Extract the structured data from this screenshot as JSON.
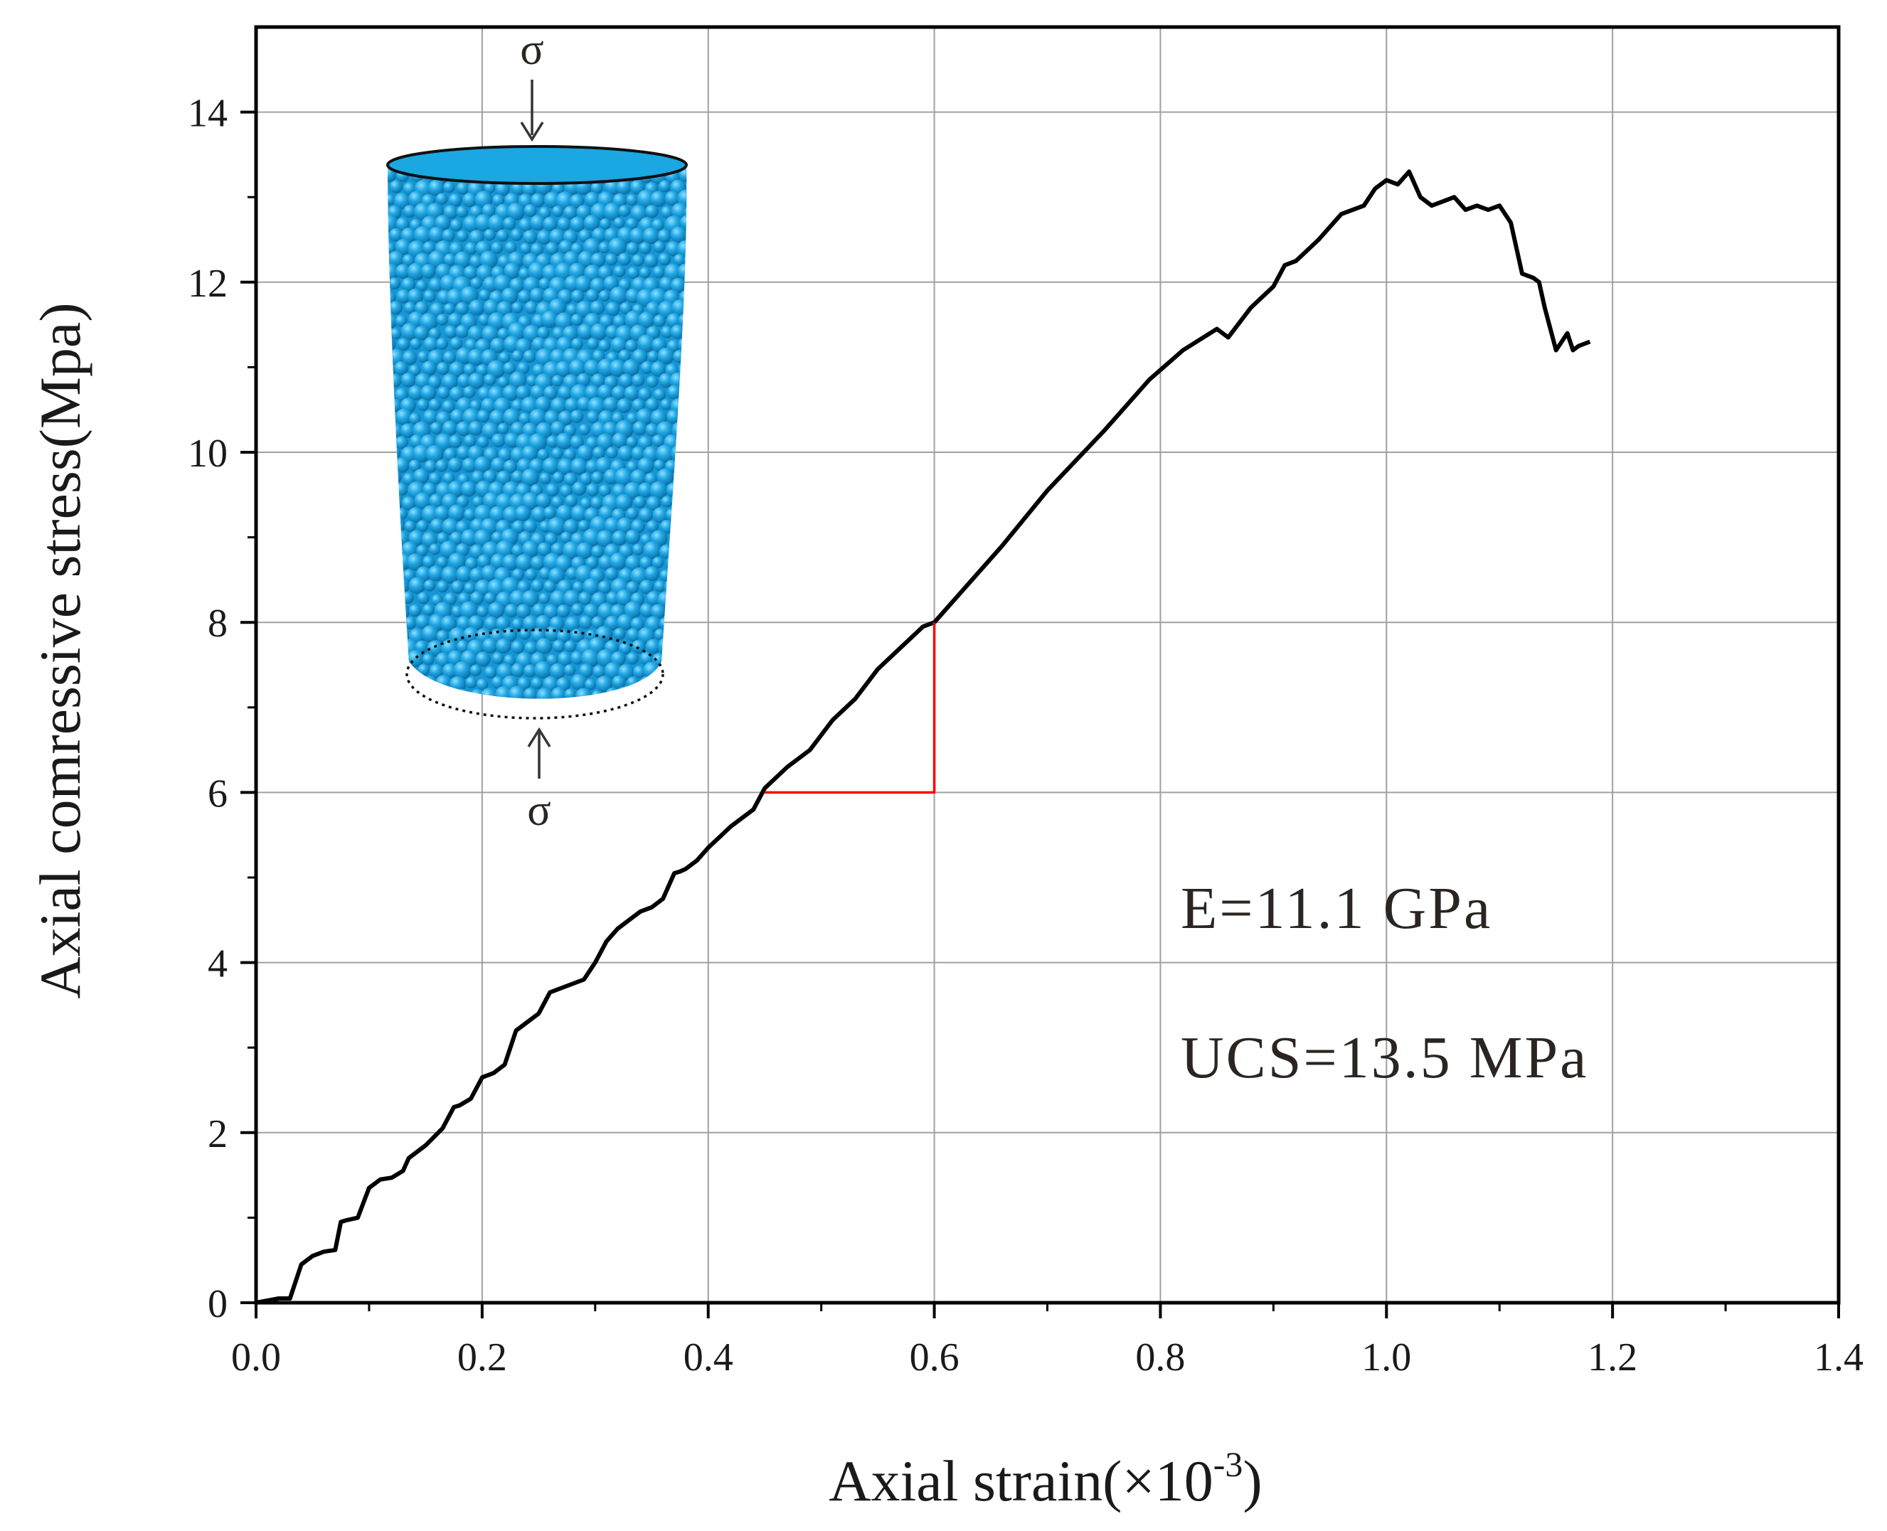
{
  "chart_data": {
    "type": "line",
    "title": "",
    "xlabel": "Axial strain(×10",
    "xlabel_exponent": "-3",
    "xlabel_close": ")",
    "ylabel": "Axial comressive stress(Mpa)",
    "xlim": [
      0.0,
      1.4
    ],
    "ylim": [
      0,
      15
    ],
    "xticks": [
      "0.0",
      "0.2",
      "0.4",
      "0.6",
      "0.8",
      "1.0",
      "1.2",
      "1.4"
    ],
    "yticks": [
      "0",
      "2",
      "4",
      "6",
      "8",
      "10",
      "12",
      "14"
    ],
    "grid": true,
    "series": [
      {
        "name": "stress-strain",
        "color": "#000000",
        "x": [
          0.0,
          0.02,
          0.03,
          0.04,
          0.05,
          0.06,
          0.07,
          0.075,
          0.08,
          0.09,
          0.1,
          0.11,
          0.12,
          0.13,
          0.135,
          0.14,
          0.15,
          0.165,
          0.175,
          0.18,
          0.19,
          0.2,
          0.21,
          0.22,
          0.23,
          0.24,
          0.25,
          0.26,
          0.27,
          0.28,
          0.29,
          0.3,
          0.31,
          0.32,
          0.33,
          0.34,
          0.35,
          0.36,
          0.37,
          0.375,
          0.38,
          0.39,
          0.4,
          0.42,
          0.44,
          0.45,
          0.47,
          0.49,
          0.51,
          0.53,
          0.55,
          0.57,
          0.59,
          0.6,
          0.63,
          0.66,
          0.7,
          0.75,
          0.79,
          0.82,
          0.85,
          0.86,
          0.88,
          0.9,
          0.91,
          0.92,
          0.94,
          0.96,
          0.98,
          0.99,
          1.0,
          1.01,
          1.02,
          1.03,
          1.04,
          1.05,
          1.06,
          1.07,
          1.08,
          1.09,
          1.1,
          1.11,
          1.12,
          1.13,
          1.135,
          1.14,
          1.15,
          1.16,
          1.165,
          1.17,
          1.18
        ],
        "y": [
          0.0,
          0.05,
          0.05,
          0.45,
          0.55,
          0.6,
          0.62,
          0.95,
          0.97,
          1.0,
          1.35,
          1.45,
          1.47,
          1.55,
          1.7,
          1.75,
          1.85,
          2.05,
          2.3,
          2.32,
          2.4,
          2.65,
          2.7,
          2.8,
          3.2,
          3.3,
          3.4,
          3.65,
          3.7,
          3.75,
          3.8,
          4.0,
          4.25,
          4.4,
          4.5,
          4.6,
          4.65,
          4.75,
          5.05,
          5.07,
          5.1,
          5.2,
          5.35,
          5.6,
          5.8,
          6.05,
          6.3,
          6.5,
          6.85,
          7.1,
          7.45,
          7.7,
          7.95,
          8.0,
          8.45,
          8.9,
          9.55,
          10.25,
          10.85,
          11.2,
          11.45,
          11.35,
          11.7,
          11.95,
          12.2,
          12.25,
          12.5,
          12.8,
          12.9,
          13.1,
          13.2,
          13.15,
          13.3,
          13.0,
          12.9,
          12.95,
          13.0,
          12.85,
          12.9,
          12.85,
          12.9,
          12.7,
          12.1,
          12.05,
          12.0,
          11.7,
          11.2,
          11.4,
          11.2,
          11.25,
          11.3
        ]
      },
      {
        "name": "modulus-triangle",
        "color": "#ff0000",
        "x": [
          0.45,
          0.6,
          0.6
        ],
        "y": [
          6.0,
          6.0,
          8.0
        ]
      }
    ],
    "annotations": [
      "E=11.1 GPa",
      "UCS=13.5 MPa"
    ]
  },
  "inset": {
    "load_symbol_top": "σ",
    "load_symbol_bottom": "σ",
    "specimen_color": "#1ba7e2"
  }
}
